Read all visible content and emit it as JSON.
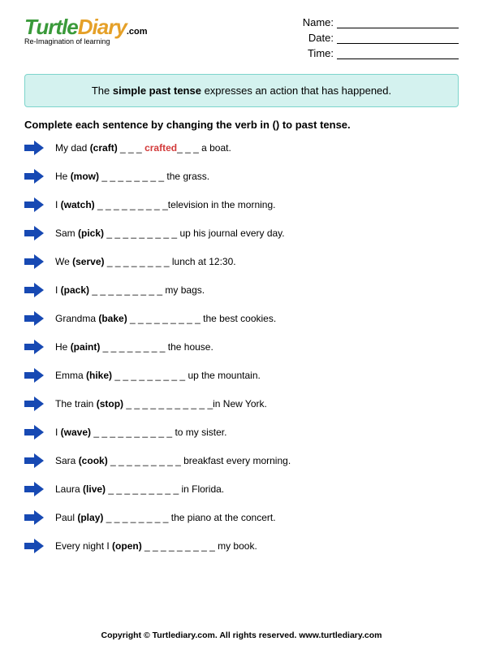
{
  "logo": {
    "word1": "Turtle",
    "word2": "Diary",
    "dotcom": ".com",
    "tagline": "Re-Imagination of learning",
    "color_turtle": "#3a9a3a",
    "color_diary": "#e5a028"
  },
  "meta": {
    "name_label": "Name:",
    "date_label": "Date:",
    "time_label": "Time:"
  },
  "info_box": {
    "pre": "The ",
    "bold": "simple past tense",
    "post": " expresses an action that has happened.",
    "bg": "#d4f2ef",
    "border": "#7dd4cc"
  },
  "instructions": "Complete each sentence by changing the verb in () to past tense.",
  "arrow_color": "#1749b3",
  "questions": [
    {
      "pre": "My dad ",
      "verb": "(craft)",
      "blank": " _ _ _ ",
      "answer": "crafted",
      "post": "_ _ _ a boat."
    },
    {
      "pre": "He ",
      "verb": "(mow)",
      "blank": " _ _ _ _ _ _ _ _ ",
      "answer": "",
      "post": "the grass."
    },
    {
      "pre": "I ",
      "verb": "(watch)",
      "blank": " _ _ _ _ _ _ _ _ _",
      "answer": "",
      "post": "television in the morning."
    },
    {
      "pre": "Sam ",
      "verb": "(pick)",
      "blank": " _ _ _ _ _ _ _ _ _ ",
      "answer": "",
      "post": "up his journal every day."
    },
    {
      "pre": "We ",
      "verb": "(serve)",
      "blank": " _ _ _ _ _ _ _ _ ",
      "answer": "",
      "post": "lunch at 12:30."
    },
    {
      "pre": "I ",
      "verb": "(pack)",
      "blank": " _ _ _ _ _ _ _ _ _ ",
      "answer": "",
      "post": "my bags."
    },
    {
      "pre": "Grandma ",
      "verb": "(bake)",
      "blank": " _ _ _ _ _ _ _ _ _ ",
      "answer": "",
      "post": "the best cookies."
    },
    {
      "pre": "He ",
      "verb": "(paint)",
      "blank": " _ _ _ _ _ _ _ _ ",
      "answer": "",
      "post": "the house."
    },
    {
      "pre": "Emma ",
      "verb": "(hike)",
      "blank": " _ _ _ _ _ _ _ _ _ ",
      "answer": "",
      "post": "up the mountain."
    },
    {
      "pre": "The train ",
      "verb": "(stop)",
      "blank": " _ _ _ _ _ _ _ _ _ _ _",
      "answer": "",
      "post": "in New York."
    },
    {
      "pre": "I ",
      "verb": "(wave)",
      "blank": " _ _ _ _ _ _ _ _ _ _  ",
      "answer": "",
      "post": "to my sister."
    },
    {
      "pre": "Sara ",
      "verb": "(cook)",
      "blank": " _ _ _ _ _ _ _ _ _ ",
      "answer": "",
      "post": "breakfast every morning."
    },
    {
      "pre": "Laura ",
      "verb": "(live)",
      "blank": " _ _ _ _ _ _ _ _ _ ",
      "answer": "",
      "post": "in Florida."
    },
    {
      "pre": "Paul ",
      "verb": "(play)",
      "blank": " _ _ _ _ _ _ _ _ ",
      "answer": "",
      "post": "the piano at the concert."
    },
    {
      "pre": "Every night I ",
      "verb": "(open)",
      "blank": " _ _ _ _ _ _ _ _ _ ",
      "answer": "",
      "post": "my book."
    }
  ],
  "footer": "Copyright © Turtlediary.com. All rights reserved.   www.turtlediary.com"
}
